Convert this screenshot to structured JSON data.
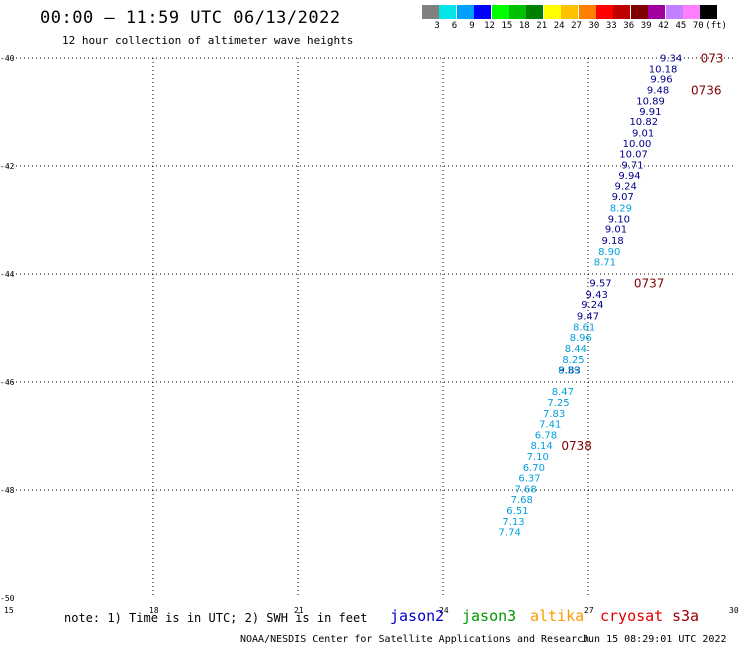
{
  "header": {
    "title": "00:00 – 11:59 UTC 06/13/2022",
    "subtitle": "12 hour collection of altimeter wave heights"
  },
  "colorbar": {
    "labels": [
      "3",
      "6",
      "9",
      "12",
      "15",
      "18",
      "21",
      "24",
      "27",
      "30",
      "33",
      "36",
      "39",
      "42",
      "45",
      "70",
      "(ft)"
    ],
    "colors": [
      "#808080",
      "#00e5e5",
      "#00a0ff",
      "#0000ff",
      "#00ff00",
      "#00c000",
      "#008000",
      "#ffff00",
      "#ffc000",
      "#ff8000",
      "#ff0000",
      "#c00000",
      "#800000",
      "#a000a0",
      "#c080ff",
      "#ff80ff",
      "#000000"
    ]
  },
  "footer": {
    "note": "note: 1) Time is in UTC; 2) SWH is in feet",
    "credit": "NOAA/NESDIS Center for Satellite Applications and Research",
    "timestamp": "Jun 15 08:29:01 UTC 2022",
    "satellites": [
      {
        "name": "jason2",
        "color": "#0000cc"
      },
      {
        "name": "jason3",
        "color": "#009900"
      },
      {
        "name": "altika",
        "color": "#ff9900"
      },
      {
        "name": "cryosat",
        "color": "#dd0000"
      },
      {
        "name": "s3a",
        "color": "#990000"
      }
    ]
  },
  "chart_data": {
    "type": "scatter",
    "title": "00:00 – 11:59 UTC 06/13/2022",
    "subtitle": "12 hour collection of altimeter wave heights",
    "xlabel": "",
    "ylabel": "",
    "xlim": [
      15,
      30
    ],
    "ylim": [
      -50,
      -40
    ],
    "xticks": [
      "15",
      "18",
      "21",
      "24",
      "27",
      "30"
    ],
    "yticks": [
      "-40",
      "-42",
      "-44",
      "-46",
      "-48",
      "-50"
    ],
    "grid": true,
    "series": [
      {
        "name": "jason2",
        "color": "#00008b",
        "points": [
          {
            "x": 28.95,
            "y": -39.99,
            "label": "9.34"
          },
          {
            "x": 28.85,
            "y": -40.19,
            "label": "10.18"
          },
          {
            "x": 28.75,
            "y": -40.38,
            "label": "9.96"
          },
          {
            "x": 28.68,
            "y": -40.58,
            "label": "9.48"
          },
          {
            "x": 28.59,
            "y": -40.79,
            "label": "10.89"
          },
          {
            "x": 28.52,
            "y": -40.98,
            "label": "9.91"
          },
          {
            "x": 28.45,
            "y": -41.17,
            "label": "10.82"
          },
          {
            "x": 28.37,
            "y": -41.38,
            "label": "9.01"
          },
          {
            "x": 28.31,
            "y": -41.57,
            "label": "10.00"
          },
          {
            "x": 28.24,
            "y": -41.77,
            "label": "10.07"
          },
          {
            "x": 28.15,
            "y": -41.97,
            "label": "9.71"
          },
          {
            "x": 28.09,
            "y": -42.17,
            "label": "9.94"
          },
          {
            "x": 28.01,
            "y": -42.36,
            "label": "9.24"
          },
          {
            "x": 27.95,
            "y": -42.56,
            "label": "9.07"
          },
          {
            "x": 27.87,
            "y": -42.97,
            "label": "9.10"
          },
          {
            "x": 27.81,
            "y": -43.16,
            "label": "9.01"
          },
          {
            "x": 27.74,
            "y": -43.37,
            "label": "9.18"
          },
          {
            "x": 27.49,
            "y": -44.16,
            "label": "9.57"
          },
          {
            "x": 27.41,
            "y": -44.37,
            "label": "9.43"
          },
          {
            "x": 27.32,
            "y": -44.56,
            "label": "9.24"
          },
          {
            "x": 27.23,
            "y": -44.77,
            "label": "9.47"
          },
          {
            "x": 26.85,
            "y": -45.77,
            "label": "9.83"
          }
        ]
      },
      {
        "name": "jason3",
        "color": "#00a0dd",
        "points": [
          {
            "x": 27.91,
            "y": -42.77,
            "label": "8.29"
          },
          {
            "x": 27.67,
            "y": -43.57,
            "label": "8.90"
          },
          {
            "x": 27.58,
            "y": -43.77,
            "label": "8.71"
          },
          {
            "x": 27.15,
            "y": -44.97,
            "label": "8.61"
          },
          {
            "x": 27.08,
            "y": -45.17,
            "label": "8.96"
          },
          {
            "x": 26.98,
            "y": -45.37,
            "label": "8.44"
          },
          {
            "x": 26.93,
            "y": -45.57,
            "label": "8.25"
          },
          {
            "x": 26.84,
            "y": -45.77,
            "label": "8.59"
          },
          {
            "x": 26.71,
            "y": -46.17,
            "label": "8.47"
          },
          {
            "x": 26.62,
            "y": -46.37,
            "label": "7.25"
          },
          {
            "x": 26.53,
            "y": -46.57,
            "label": "7.83"
          },
          {
            "x": 26.45,
            "y": -46.77,
            "label": "7.41"
          },
          {
            "x": 26.36,
            "y": -46.97,
            "label": "6.78"
          },
          {
            "x": 26.27,
            "y": -47.17,
            "label": "8.14"
          },
          {
            "x": 26.19,
            "y": -47.37,
            "label": "7.10"
          },
          {
            "x": 26.11,
            "y": -47.57,
            "label": "6.70"
          },
          {
            "x": 26.02,
            "y": -47.77,
            "label": "6.37"
          },
          {
            "x": 25.94,
            "y": -47.97,
            "label": "7.68"
          },
          {
            "x": 25.86,
            "y": -48.17,
            "label": "7.68"
          },
          {
            "x": 25.77,
            "y": -48.37,
            "label": "6.51"
          },
          {
            "x": 25.69,
            "y": -48.57,
            "label": "7.13"
          },
          {
            "x": 25.61,
            "y": -48.77,
            "label": "7.74"
          }
        ]
      }
    ],
    "annotations": [
      {
        "x": 29.33,
        "y": -39.99,
        "label": "073"
      },
      {
        "x": 29.13,
        "y": -40.58,
        "label": "0736"
      },
      {
        "x": 27.95,
        "y": -44.16,
        "label": "0737"
      },
      {
        "x": 26.45,
        "y": -47.17,
        "label": "0738"
      }
    ]
  }
}
